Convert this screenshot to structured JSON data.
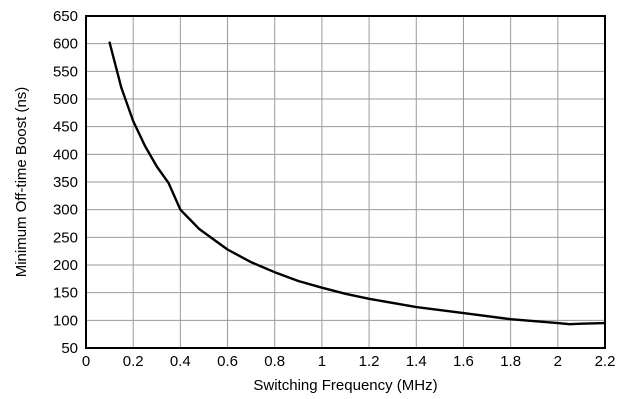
{
  "chart_data": {
    "type": "line",
    "title": "",
    "xlabel": "Switching Frequency (MHz)",
    "ylabel": "Minimum Off-time Boost (ns)",
    "xlim": [
      0,
      2.2
    ],
    "ylim": [
      50,
      650
    ],
    "grid": true,
    "x_ticks": [
      0,
      0.2,
      0.4,
      0.6,
      0.8,
      1,
      1.2,
      1.4,
      1.6,
      1.8,
      2,
      2.2
    ],
    "x_tick_labels": [
      "0",
      "0.2",
      "0.4",
      "0.6",
      "0.8",
      "1",
      "1.2",
      "1.4",
      "1.6",
      "1.8",
      "2",
      "2.2"
    ],
    "y_ticks": [
      50,
      100,
      150,
      200,
      250,
      300,
      350,
      400,
      450,
      500,
      550,
      600,
      650
    ],
    "y_tick_labels": [
      "50",
      "100",
      "150",
      "200",
      "250",
      "300",
      "350",
      "400",
      "450",
      "500",
      "550",
      "600",
      "650"
    ],
    "series": [
      {
        "x": [
          0.1,
          0.15,
          0.2,
          0.25,
          0.3,
          0.35,
          0.4,
          0.48,
          0.6,
          0.7,
          0.8,
          0.9,
          1.0,
          1.1,
          1.2,
          1.4,
          1.6,
          1.8,
          2.0,
          2.05,
          2.1,
          2.2
        ],
        "values": [
          602,
          520,
          460,
          415,
          378,
          348,
          300,
          265,
          228,
          205,
          187,
          171,
          159,
          148,
          139,
          124,
          113,
          102,
          95,
          93,
          94,
          95
        ]
      }
    ]
  }
}
